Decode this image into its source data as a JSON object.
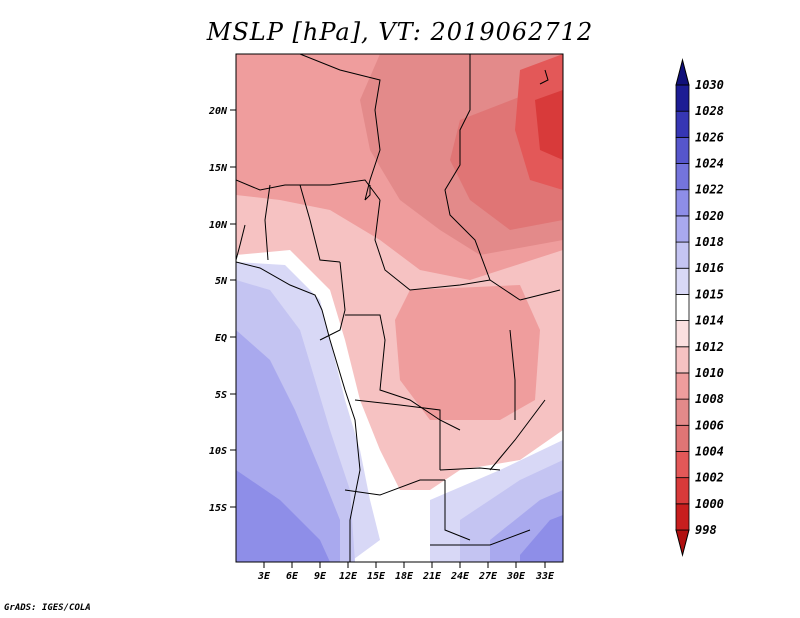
{
  "title": "MSLP [hPa], VT: 2019062712",
  "footer": "GrADS: IGES/COLA",
  "lat_labels": [
    "20N",
    "15N",
    "10N",
    "5N",
    "EQ",
    "5S",
    "10S",
    "15S"
  ],
  "lon_labels": [
    "3E",
    "6E",
    "9E",
    "12E",
    "15E",
    "18E",
    "21E",
    "24E",
    "27E",
    "30E",
    "33E"
  ],
  "colorbar": {
    "levels": [
      "998",
      "1000",
      "1002",
      "1004",
      "1006",
      "1008",
      "1010",
      "1012",
      "1014",
      "1015",
      "1016",
      "1018",
      "1020",
      "1022",
      "1024",
      "1026",
      "1028",
      "1030"
    ],
    "colors": [
      "#b01010",
      "#c81e1e",
      "#d83a3a",
      "#e35858",
      "#e07575",
      "#e38a8a",
      "#ef9d9d",
      "#f6c2c2",
      "#fbe0e0",
      "#ffffff",
      "#d8d8f6",
      "#c4c4f2",
      "#a9a9ee",
      "#8e8ee8",
      "#7474dc",
      "#5656cc",
      "#3636b4",
      "#1c1c94",
      "#10107a"
    ]
  }
}
